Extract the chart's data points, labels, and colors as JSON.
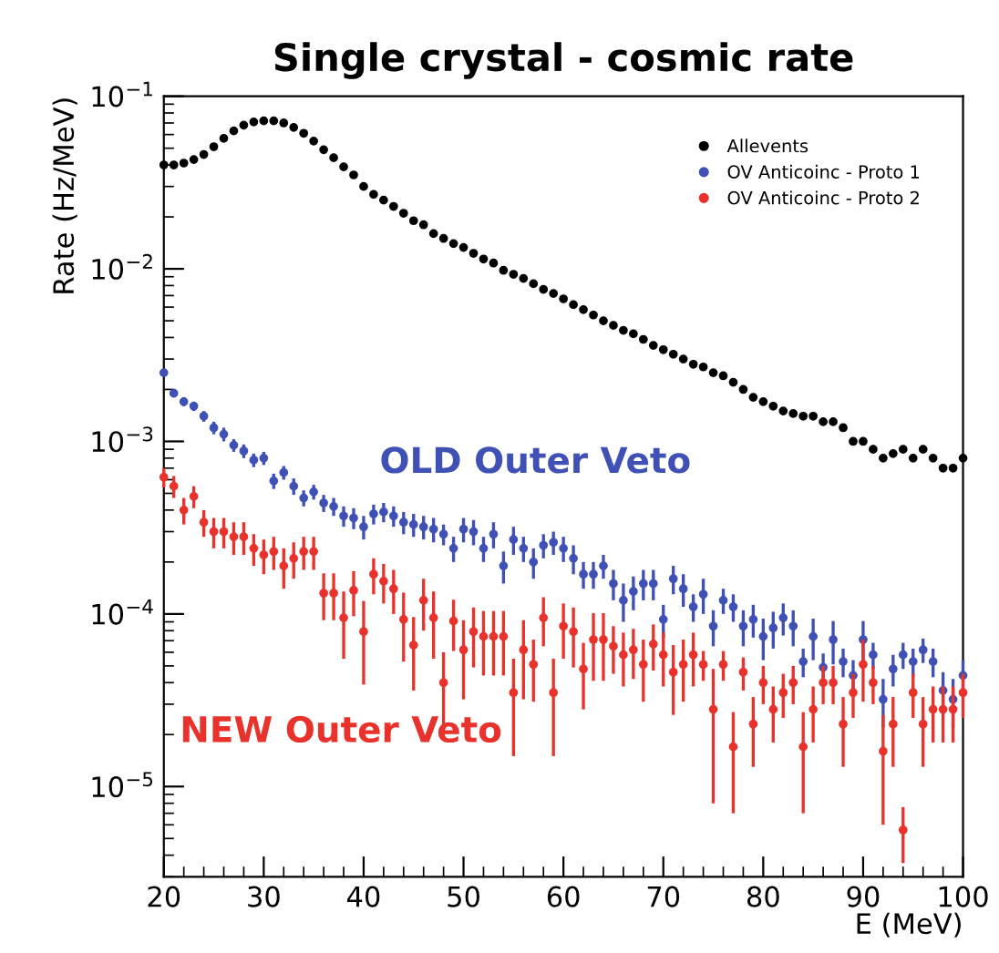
{
  "chart_data": {
    "type": "scatter",
    "title": "Single crystal - cosmic rate",
    "xlabel": "E (MeV)",
    "ylabel": "Rate (Hz/MeV)",
    "xlim": [
      20,
      100
    ],
    "xticks": [
      20,
      30,
      40,
      50,
      60,
      70,
      80,
      90,
      100
    ],
    "ylim": [
      3e-06,
      0.1
    ],
    "yticks": [
      {
        "value": 1e-05,
        "label": "10$^{−5}$"
      },
      {
        "value": 0.0001,
        "label": "10$^{−4}$"
      },
      {
        "value": 0.001,
        "label": "10$^{−3}$"
      },
      {
        "value": 0.01,
        "label": "10$^{−2}$"
      },
      {
        "value": 0.1,
        "label": "10$^{−1}$"
      }
    ],
    "log": "y",
    "grid": false,
    "legend": "top right",
    "marker": "circle",
    "x": [
      20,
      21,
      22,
      23,
      24,
      25,
      26,
      27,
      28,
      29,
      30,
      31,
      32,
      33,
      34,
      35,
      36,
      37,
      38,
      39,
      40,
      41,
      42,
      43,
      44,
      45,
      46,
      47,
      48,
      49,
      50,
      51,
      52,
      53,
      54,
      55,
      56,
      57,
      58,
      59,
      60,
      61,
      62,
      63,
      64,
      65,
      66,
      67,
      68,
      69,
      70,
      71,
      72,
      73,
      74,
      75,
      76,
      77,
      78,
      79,
      80,
      81,
      82,
      83,
      84,
      85,
      86,
      87,
      88,
      89,
      90,
      91,
      92,
      93,
      94,
      95,
      96,
      97,
      98,
      99,
      100
    ],
    "series": [
      {
        "name": "Allevents",
        "color": "#000000",
        "values": [
          0.04,
          0.04,
          0.041,
          0.043,
          0.046,
          0.051,
          0.057,
          0.063,
          0.068,
          0.071,
          0.072,
          0.072,
          0.07,
          0.066,
          0.061,
          0.055,
          0.049,
          0.044,
          0.039,
          0.035,
          0.03,
          0.027,
          0.025,
          0.023,
          0.021,
          0.019,
          0.018,
          0.016,
          0.015,
          0.014,
          0.0133,
          0.0123,
          0.0114,
          0.0108,
          0.0098,
          0.0093,
          0.0088,
          0.0082,
          0.0076,
          0.0072,
          0.0067,
          0.0062,
          0.0058,
          0.0054,
          0.005,
          0.0047,
          0.0044,
          0.0042,
          0.0039,
          0.0036,
          0.0034,
          0.0032,
          0.003,
          0.0028,
          0.0027,
          0.0025,
          0.0024,
          0.0022,
          0.002,
          0.0018,
          0.0017,
          0.0016,
          0.0015,
          0.00145,
          0.0014,
          0.0014,
          0.0013,
          0.0013,
          0.0012,
          0.001,
          0.001,
          0.0009,
          0.0008,
          0.00085,
          0.0009,
          0.0008,
          0.0009,
          0.0008,
          0.0007,
          0.0007,
          0.0008
        ]
      },
      {
        "name": "OV Anticoinc - Proto 1",
        "color": "#3f51b5",
        "values": [
          0.0025,
          0.0019,
          0.0017,
          0.0016,
          0.0014,
          0.0012,
          0.0011,
          0.00095,
          0.00088,
          0.00078,
          0.0008,
          0.00059,
          0.00066,
          0.00055,
          0.00047,
          0.00051,
          0.00044,
          0.00042,
          0.00037,
          0.00036,
          0.00032,
          0.00038,
          0.00039,
          0.00037,
          0.00034,
          0.00033,
          0.00032,
          0.00031,
          0.00029,
          0.00024,
          0.00031,
          0.0003,
          0.00024,
          0.00029,
          0.00019,
          0.00027,
          0.00024,
          0.0002,
          0.00025,
          0.00026,
          0.00024,
          0.00021,
          0.00017,
          0.00017,
          0.00019,
          0.00015,
          0.00012,
          0.000135,
          0.00015,
          0.00015,
          9.3e-05,
          0.00016,
          0.00014,
          0.00011,
          0.00013,
          8.5e-05,
          0.00012,
          0.00011,
          8.5e-05,
          9.3e-05,
          7.4e-05,
          8.3e-05,
          9.5e-05,
          8.5e-05,
          5.3e-05,
          7.4e-05,
          4.9e-05,
          7.1e-05,
          5.3e-05,
          4.4e-05,
          7.1e-05,
          5.8e-05,
          3.2e-05,
          4.8e-05,
          5.8e-05,
          5.3e-05,
          6.2e-05,
          5.3e-05,
          3.6e-05,
          3.2e-05,
          4.4e-05
        ],
        "errors": [
          0.0001,
          0.0001,
          0.0001,
          0.0001,
          0.0001,
          0.0001,
          0.0001,
          8e-05,
          8e-05,
          7e-05,
          7e-05,
          6e-05,
          6e-05,
          6e-05,
          5e-05,
          5e-05,
          5e-05,
          5e-05,
          5e-05,
          5e-05,
          5e-05,
          5e-05,
          5e-05,
          5e-05,
          5e-05,
          5e-05,
          5e-05,
          5e-05,
          4e-05,
          4e-05,
          5e-05,
          5e-05,
          4e-05,
          5e-05,
          4e-05,
          5e-05,
          4e-05,
          4e-05,
          4e-05,
          4e-05,
          4e-05,
          4e-05,
          3e-05,
          3e-05,
          3e-05,
          3e-05,
          3e-05,
          3e-05,
          3e-05,
          3e-05,
          2e-05,
          3e-05,
          3e-05,
          2e-05,
          3e-05,
          2e-05,
          2e-05,
          2e-05,
          2e-05,
          2e-05,
          2e-05,
          2e-05,
          2e-05,
          2e-05,
          1e-05,
          2e-05,
          1e-05,
          2e-05,
          1e-05,
          1e-05,
          2e-05,
          1e-05,
          1e-05,
          1e-05,
          1e-05,
          1e-05,
          1e-05,
          1e-05,
          1e-05,
          1e-05,
          1e-05
        ]
      },
      {
        "name": "OV Anticoinc - Proto 2",
        "color": "#e8322b",
        "values": [
          0.00062,
          0.00055,
          0.0004,
          0.00048,
          0.00034,
          0.0003,
          0.0003,
          0.00028,
          0.00028,
          0.00024,
          0.00022,
          0.00023,
          0.00019,
          0.00021,
          0.00023,
          0.00023,
          0.000132,
          0.000132,
          9.5e-05,
          0.000137,
          7.9e-05,
          0.00017,
          0.000155,
          0.00014,
          9.3e-05,
          6.6e-05,
          0.00012,
          9.5e-05,
          4e-05,
          9.1e-05,
          6.2e-05,
          7.9e-05,
          7.4e-05,
          7.4e-05,
          7.4e-05,
          3.5e-05,
          6.2e-05,
          5.1e-05,
          9.5e-05,
          3.5e-05,
          8.5e-05,
          7.9e-05,
          4.8e-05,
          7.1e-05,
          7.1e-05,
          6.5e-05,
          5.8e-05,
          6.2e-05,
          5.1e-05,
          6.7e-05,
          5.8e-05,
          4.6e-05,
          5.1e-05,
          5.8e-05,
          5.1e-05,
          2.8e-05,
          5.1e-05,
          1.7e-05,
          4.6e-05,
          2.3e-05,
          4e-05,
          2.8e-05,
          3.5e-05,
          4e-05,
          1.7e-05,
          2.8e-05,
          4e-05,
          4e-05,
          2.3e-05,
          3.5e-05,
          5.1e-05,
          4e-05,
          1.6e-05,
          2.3e-05,
          5.6e-06,
          3.5e-05,
          2.3e-05,
          2.8e-05,
          2.8e-05,
          2.8e-05,
          3.5e-05
        ],
        "errors": [
          8e-05,
          8e-05,
          7e-05,
          7e-05,
          6e-05,
          6e-05,
          6e-05,
          6e-05,
          6e-05,
          5e-05,
          5e-05,
          5e-05,
          5e-05,
          5e-05,
          5e-05,
          5e-05,
          4e-05,
          4e-05,
          4e-05,
          4e-05,
          4e-05,
          4e-05,
          4e-05,
          4e-05,
          4e-05,
          3e-05,
          4e-05,
          4e-05,
          2e-05,
          3e-05,
          3e-05,
          3e-05,
          3e-05,
          3e-05,
          3e-05,
          2e-05,
          3e-05,
          2e-05,
          3e-05,
          2e-05,
          3e-05,
          3e-05,
          2e-05,
          3e-05,
          3e-05,
          2e-05,
          2e-05,
          2e-05,
          2e-05,
          2e-05,
          2e-05,
          2e-05,
          2e-05,
          2e-05,
          1e-05,
          2e-05,
          1e-05,
          1e-05,
          1e-05,
          1e-05,
          1e-05,
          1e-05,
          1e-05,
          1e-05,
          1e-05,
          1e-05,
          1e-05,
          1e-05,
          1e-05,
          1e-05,
          2e-05,
          1e-05,
          1e-05,
          1e-05,
          2e-06,
          1e-05,
          1e-05,
          1e-05,
          1e-05,
          1e-05,
          1e-05
        ]
      }
    ],
    "annotations": [
      "OLD Outer Veto",
      "NEW Outer Veto"
    ]
  }
}
